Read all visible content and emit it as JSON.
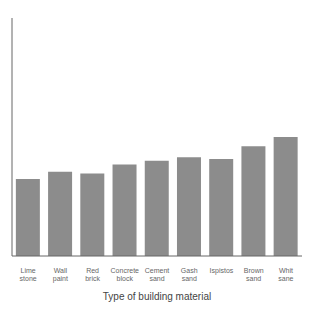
{
  "chart_data": {
    "type": "bar",
    "xlabel": "Type of building material",
    "categories": [
      "Lime\nstone",
      "Wall\npaint",
      "Red\nbrick",
      "Concrete\nblock",
      "Cement\nsand",
      "Gash\nsand",
      "Ispistos",
      "Brown\nsand",
      "Whit\nsane"
    ],
    "values": [
      42,
      46,
      45,
      50,
      52,
      54,
      53,
      60,
      65
    ],
    "color": "#8c8c8c",
    "ylim": [
      0,
      130
    ],
    "tick_labels": "x",
    "grid": false
  }
}
